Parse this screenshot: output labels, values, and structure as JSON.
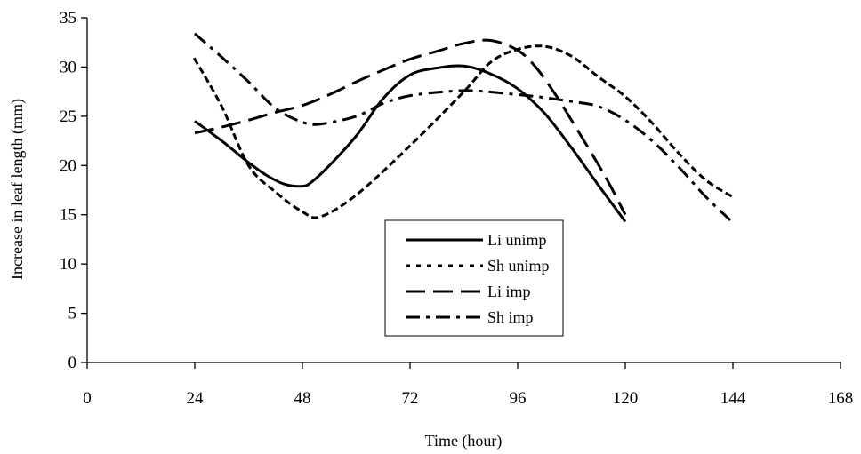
{
  "chart_data": {
    "type": "line",
    "xlabel": "Time (hour)",
    "ylabel": "Increase in leaf length (mm)",
    "xlim": [
      0,
      168
    ],
    "ylim": [
      0,
      35
    ],
    "x_ticks": [
      0,
      24,
      48,
      72,
      96,
      120,
      144,
      168
    ],
    "y_ticks": [
      0,
      5,
      10,
      15,
      20,
      25,
      30,
      35
    ],
    "grid": false,
    "legend_position": "center-bottom",
    "series": [
      {
        "name": "Li unimp",
        "style": "solid",
        "color": "#000000",
        "points": [
          [
            24,
            24.5
          ],
          [
            30,
            22.5
          ],
          [
            36,
            20.3
          ],
          [
            40,
            19.0
          ],
          [
            44,
            18.1
          ],
          [
            48,
            17.9
          ],
          [
            50,
            18.3
          ],
          [
            54,
            20.0
          ],
          [
            60,
            23.0
          ],
          [
            66,
            26.8
          ],
          [
            72,
            29.2
          ],
          [
            78,
            29.9
          ],
          [
            84,
            30.1
          ],
          [
            90,
            29.3
          ],
          [
            96,
            27.8
          ],
          [
            102,
            25.3
          ],
          [
            108,
            21.8
          ],
          [
            114,
            18.0
          ],
          [
            120,
            14.3
          ]
        ]
      },
      {
        "name": "Sh unimp",
        "style": "dotted",
        "color": "#000000",
        "points": [
          [
            24,
            30.8
          ],
          [
            30,
            26.0
          ],
          [
            36,
            20.0
          ],
          [
            42,
            17.3
          ],
          [
            48,
            15.3
          ],
          [
            52,
            14.8
          ],
          [
            60,
            17.0
          ],
          [
            72,
            22.0
          ],
          [
            84,
            27.5
          ],
          [
            90,
            30.5
          ],
          [
            96,
            31.8
          ],
          [
            102,
            32.1
          ],
          [
            108,
            31.1
          ],
          [
            114,
            29.0
          ],
          [
            120,
            27.0
          ],
          [
            126,
            24.3
          ],
          [
            132,
            21.2
          ],
          [
            138,
            18.5
          ],
          [
            144,
            16.8
          ]
        ]
      },
      {
        "name": "Li imp",
        "style": "long-dash",
        "color": "#000000",
        "points": [
          [
            24,
            23.3
          ],
          [
            30,
            23.9
          ],
          [
            36,
            24.6
          ],
          [
            42,
            25.4
          ],
          [
            48,
            26.1
          ],
          [
            54,
            27.2
          ],
          [
            60,
            28.5
          ],
          [
            66,
            29.7
          ],
          [
            72,
            30.8
          ],
          [
            78,
            31.6
          ],
          [
            84,
            32.4
          ],
          [
            90,
            32.7
          ],
          [
            96,
            31.7
          ],
          [
            100,
            30.0
          ],
          [
            104,
            27.5
          ],
          [
            108,
            24.6
          ],
          [
            112,
            21.6
          ],
          [
            116,
            18.5
          ],
          [
            120,
            15.0
          ]
        ]
      },
      {
        "name": "Sh imp",
        "style": "dash-dot",
        "color": "#000000",
        "points": [
          [
            24,
            33.4
          ],
          [
            30,
            31.0
          ],
          [
            36,
            28.5
          ],
          [
            42,
            25.8
          ],
          [
            48,
            24.4
          ],
          [
            52,
            24.2
          ],
          [
            60,
            25.0
          ],
          [
            66,
            26.3
          ],
          [
            72,
            27.1
          ],
          [
            80,
            27.5
          ],
          [
            86,
            27.6
          ],
          [
            96,
            27.2
          ],
          [
            102,
            26.9
          ],
          [
            108,
            26.5
          ],
          [
            114,
            26.0
          ],
          [
            120,
            24.6
          ],
          [
            126,
            22.5
          ],
          [
            132,
            19.8
          ],
          [
            138,
            16.8
          ],
          [
            144,
            14.2
          ]
        ]
      }
    ]
  }
}
